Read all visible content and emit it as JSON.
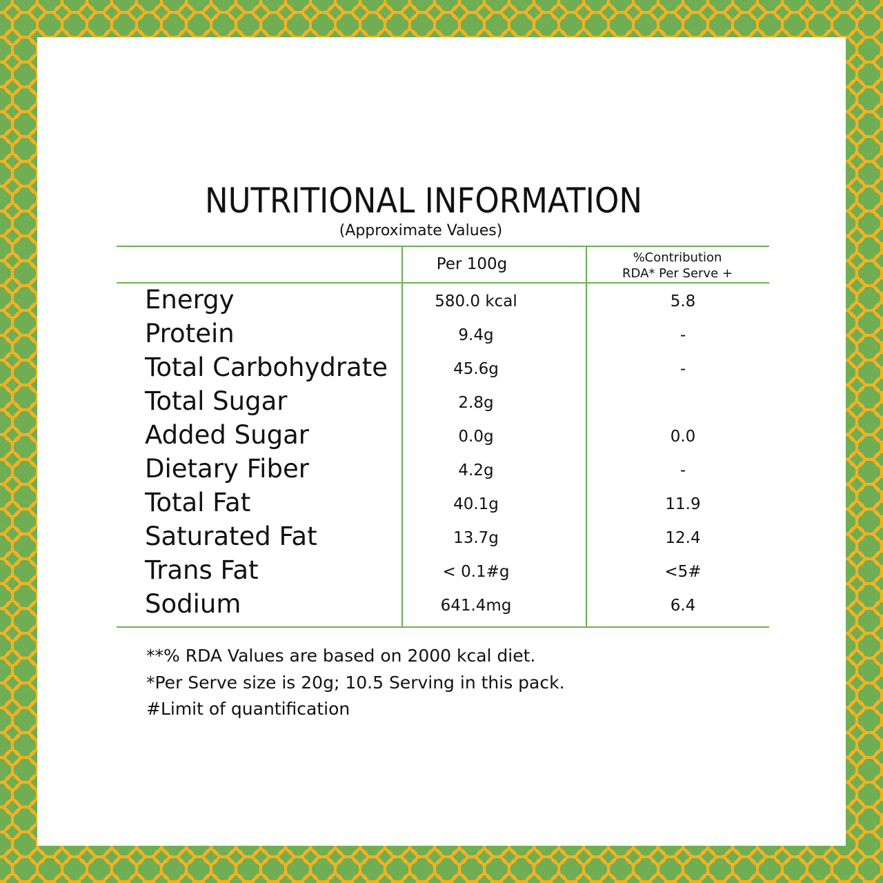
{
  "title": "NUTRITIONAL INFORMATION",
  "subtitle": "(Approximate Values)",
  "columns": {
    "per100": "Per 100g",
    "rda_line1": "%Contribution",
    "rda_line2": "RDA* Per Serve +"
  },
  "rows": [
    {
      "label": "Energy",
      "per100": "580.0 kcal",
      "rda": "5.8"
    },
    {
      "label": "Protein",
      "per100": "9.4g",
      "rda": "-"
    },
    {
      "label": "Total Carbohydrate",
      "per100": "45.6g",
      "rda": "-"
    },
    {
      "label": "Total Sugar",
      "per100": "2.8g",
      "rda": ""
    },
    {
      "label": "Added Sugar",
      "per100": "0.0g",
      "rda": "0.0"
    },
    {
      "label": "Dietary Fiber",
      "per100": "4.2g",
      "rda": "-"
    },
    {
      "label": "Total Fat",
      "per100": "40.1g",
      "rda": "11.9"
    },
    {
      "label": "Saturated Fat",
      "per100": "13.7g",
      "rda": "12.4"
    },
    {
      "label": "Trans Fat",
      "per100": "< 0.1#g",
      "rda": "<5#"
    },
    {
      "label": "Sodium",
      "per100": "641.4mg",
      "rda": "6.4"
    }
  ],
  "footnotes": [
    "**% RDA Values are based on 2000 kcal diet.",
    "*Per Serve size is 20g; 10.5 Serving in this pack.",
    "#Limit of quantification"
  ],
  "colors": {
    "border_green": "#6fae53",
    "border_pattern": "#f2b124",
    "rule_green": "#6fae53"
  }
}
